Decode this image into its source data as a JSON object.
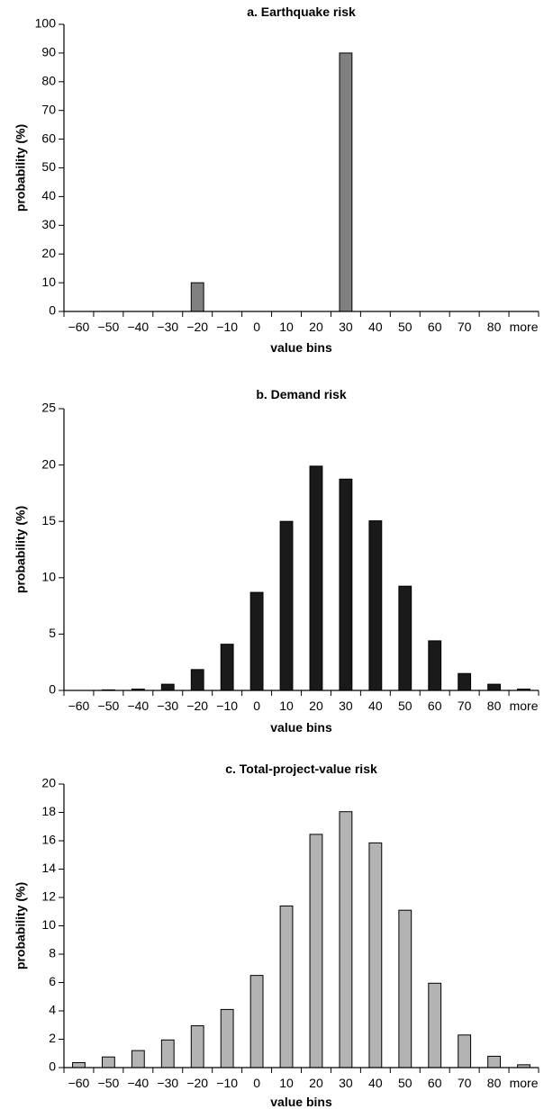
{
  "chart_data": [
    {
      "type": "bar",
      "title": "a. Earthquake risk",
      "xlabel": "value bins",
      "ylabel": "probability (%)",
      "categories": [
        "−60",
        "−50",
        "−40",
        "−30",
        "−20",
        "−10",
        "0",
        "10",
        "20",
        "30",
        "40",
        "50",
        "60",
        "70",
        "80",
        "more"
      ],
      "values": [
        0,
        0,
        0,
        0,
        10,
        0,
        0,
        0,
        0,
        90,
        0,
        0,
        0,
        0,
        0,
        0
      ],
      "ylim": [
        0,
        100
      ],
      "yticks": [
        0,
        10,
        20,
        30,
        40,
        50,
        60,
        70,
        80,
        90,
        100
      ],
      "color": "#808080",
      "grid": false
    },
    {
      "type": "bar",
      "title": "b. Demand risk",
      "xlabel": "value bins",
      "ylabel": "probability (%)",
      "categories": [
        "−60",
        "−50",
        "−40",
        "−30",
        "−20",
        "−10",
        "0",
        "10",
        "20",
        "30",
        "40",
        "50",
        "60",
        "70",
        "80",
        "more"
      ],
      "values": [
        0,
        0.05,
        0.12,
        0.55,
        1.85,
        4.1,
        8.7,
        15.0,
        19.9,
        18.75,
        15.05,
        9.25,
        4.4,
        1.5,
        0.55,
        0.12
      ],
      "ylim": [
        0,
        25
      ],
      "yticks": [
        0,
        5,
        10,
        15,
        20,
        25
      ],
      "color": "#1a1a1a",
      "grid": false
    },
    {
      "type": "bar",
      "title": "c. Total-project-value risk",
      "xlabel": "value bins",
      "ylabel": "probability (%)",
      "categories": [
        "−60",
        "−50",
        "−40",
        "−30",
        "−20",
        "−10",
        "0",
        "10",
        "20",
        "30",
        "40",
        "50",
        "60",
        "70",
        "80",
        "more"
      ],
      "values": [
        0.35,
        0.75,
        1.2,
        1.95,
        2.95,
        4.1,
        6.5,
        11.4,
        16.45,
        18.05,
        15.85,
        11.1,
        5.95,
        2.3,
        0.8,
        0.2
      ],
      "ylim": [
        0,
        20
      ],
      "yticks": [
        0,
        2,
        4,
        6,
        8,
        10,
        12,
        14,
        16,
        18,
        20
      ],
      "color": "#b3b3b3",
      "grid": false
    }
  ]
}
